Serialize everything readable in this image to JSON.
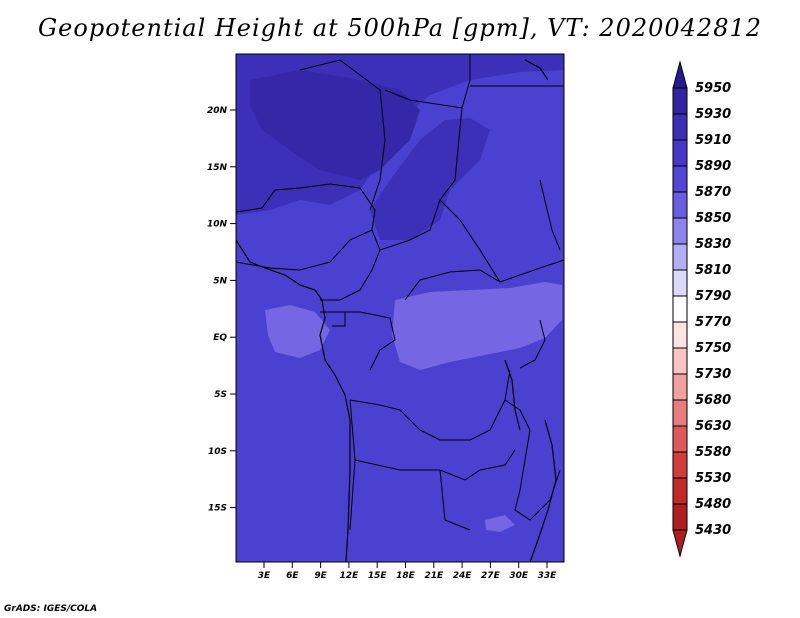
{
  "title": "Geopotential Height at 500hPa [gpm], VT: 2020042812",
  "footer": "GrADS: IGES/COLA",
  "map": {
    "lat_labels": [
      "20N",
      "15N",
      "10N",
      "5N",
      "EQ",
      "5S",
      "10S",
      "15S"
    ],
    "lon_labels": [
      "3E",
      "6E",
      "9E",
      "12E",
      "15E",
      "18E",
      "21E",
      "24E",
      "27E",
      "30E",
      "33E"
    ],
    "colors": {
      "background_field": "#4a41d0",
      "high_field": "#3c2fb8",
      "low_field": "#7566e4",
      "borders": "#000000"
    }
  },
  "colorbar": {
    "levels": [
      "5950",
      "5930",
      "5910",
      "5890",
      "5870",
      "5850",
      "5830",
      "5810",
      "5790",
      "5770",
      "5750",
      "5730",
      "5680",
      "5630",
      "5580",
      "5530",
      "5480",
      "5430"
    ],
    "colors": [
      "#2a1a8f",
      "#34239e",
      "#3d2db3",
      "#4538c4",
      "#5246d6",
      "#6a5ee0",
      "#8c84ec",
      "#b4aef4",
      "#dcd9fa",
      "#ffffff",
      "#fde3e3",
      "#f8c4c4",
      "#f2a0a0",
      "#e87b7b",
      "#de5959",
      "#d13c3c",
      "#c22a2a",
      "#b01f1f"
    ]
  }
}
